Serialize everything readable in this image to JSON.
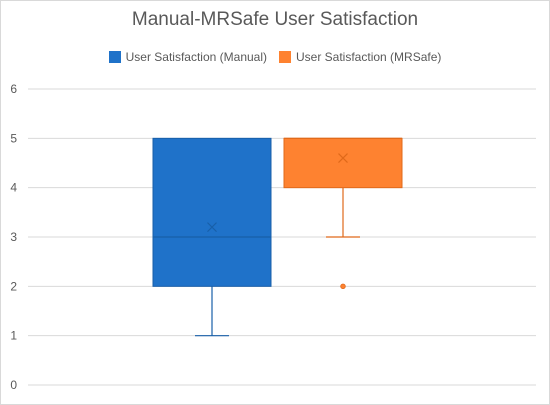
{
  "chart_data": {
    "type": "box",
    "title": "Manual-MRSafe User Satisfaction",
    "xlabel": "",
    "ylabel": "",
    "ylim": [
      0,
      6
    ],
    "y_ticks": [
      "0",
      "1",
      "2",
      "3",
      "4",
      "5",
      "6"
    ],
    "grid": true,
    "legend_position": "top",
    "series": [
      {
        "name": "User Satisfaction (Manual)",
        "color": "#1f72c9",
        "edge_color": "#185fa8",
        "min": 1,
        "q1": 2,
        "median": 3,
        "q3": 5,
        "max": 5,
        "mean": 3.2,
        "outliers": []
      },
      {
        "name": "User Satisfaction (MRSafe)",
        "color": "#fe8230",
        "edge_color": "#e0691a",
        "min": 3,
        "q1": 4,
        "median": 5,
        "q3": 5,
        "max": 5,
        "mean": 4.6,
        "outliers": [
          2
        ]
      }
    ]
  }
}
